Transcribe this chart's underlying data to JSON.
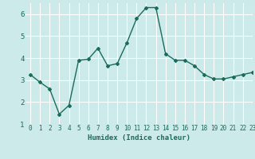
{
  "x": [
    0,
    1,
    2,
    3,
    4,
    5,
    6,
    7,
    8,
    9,
    10,
    11,
    12,
    13,
    14,
    15,
    16,
    17,
    18,
    19,
    20,
    21,
    22,
    23
  ],
  "y": [
    3.25,
    2.9,
    2.6,
    1.45,
    1.85,
    3.9,
    3.95,
    4.45,
    3.65,
    3.75,
    4.7,
    5.8,
    6.3,
    6.3,
    4.2,
    3.9,
    3.9,
    3.65,
    3.25,
    3.05,
    3.05,
    3.15,
    3.25,
    3.35
  ],
  "xlabel": "Humidex (Indice chaleur)",
  "ylim": [
    1,
    6.5
  ],
  "xlim": [
    -0.5,
    23
  ],
  "yticks": [
    1,
    2,
    3,
    4,
    5,
    6
  ],
  "xticks": [
    0,
    1,
    2,
    3,
    4,
    5,
    6,
    7,
    8,
    9,
    10,
    11,
    12,
    13,
    14,
    15,
    16,
    17,
    18,
    19,
    20,
    21,
    22,
    23
  ],
  "line_color": "#1a6b5a",
  "bg_color": "#cceaea",
  "grid_color": "#ffffff",
  "marker": "D",
  "marker_size": 2.0,
  "line_width": 1.0,
  "tick_fontsize": 5.5,
  "xlabel_fontsize": 6.5
}
